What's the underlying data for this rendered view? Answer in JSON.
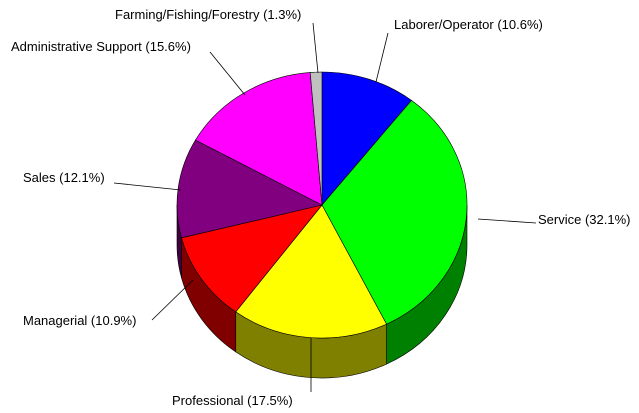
{
  "chart_data": {
    "type": "pie",
    "style": "3d",
    "start_angle_deg": 90,
    "direction": "clockwise",
    "slices": [
      {
        "label": "Laborer/Operator (10.6%)",
        "value": 10.6,
        "color": "#0000ff",
        "side": "#000080"
      },
      {
        "label": "Service (32.1%)",
        "value": 32.1,
        "color": "#00ff00",
        "side": "#008000"
      },
      {
        "label": "Professional (17.5%)",
        "value": 17.5,
        "color": "#ffff00",
        "side": "#808000"
      },
      {
        "label": "Managerial (10.9%)",
        "value": 10.9,
        "color": "#ff0000",
        "side": "#800000"
      },
      {
        "label": "Sales (12.1%)",
        "value": 12.1,
        "color": "#800080",
        "side": "#400040"
      },
      {
        "label": "Administrative Support (15.6%)",
        "value": 15.6,
        "color": "#ff00ff",
        "side": "#800080"
      },
      {
        "label": "Farming/Fishing/Forestry (1.3%)",
        "value": 1.3,
        "color": "#c0c0c0",
        "side": "#808080"
      }
    ]
  }
}
